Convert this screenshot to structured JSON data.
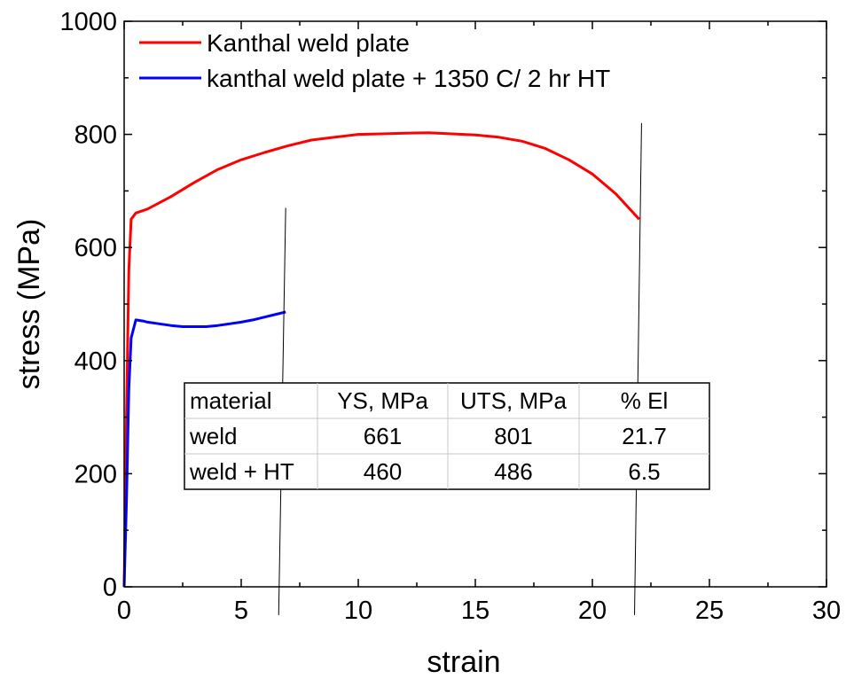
{
  "chart_data": {
    "type": "line",
    "title": "",
    "xlabel": "strain",
    "ylabel": "stress (MPa)",
    "xlim": [
      0,
      30
    ],
    "ylim": [
      0,
      1000
    ],
    "x_ticks": [
      0,
      5,
      10,
      15,
      20,
      25,
      30
    ],
    "y_ticks": [
      0,
      200,
      400,
      600,
      800,
      1000
    ],
    "x_tick_labels": [
      "0",
      "5",
      "10",
      "15",
      "20",
      "25",
      "30"
    ],
    "y_tick_labels": [
      "0",
      "200",
      "400",
      "600",
      "800",
      "1000"
    ],
    "grid": false,
    "legend_position": "top-left",
    "series": [
      {
        "name": "Kanthal weld plate",
        "color": "#ff0000",
        "x": [
          0,
          0.1,
          0.2,
          0.3,
          0.5,
          1.0,
          2.0,
          3.0,
          4.0,
          5.0,
          6.0,
          7.0,
          8.0,
          9.0,
          10.0,
          11.0,
          12.0,
          13.0,
          14.0,
          15.0,
          16.0,
          17.0,
          18.0,
          19.0,
          20.0,
          21.0,
          22.0
        ],
        "y": [
          0,
          300,
          560,
          650,
          661,
          668,
          690,
          715,
          738,
          755,
          768,
          780,
          790,
          795,
          800,
          801,
          802,
          803,
          801,
          799,
          795,
          788,
          775,
          755,
          730,
          695,
          650
        ]
      },
      {
        "name": "kanthal weld plate + 1350 C/ 2 hr HT",
        "color": "#0000ff",
        "x": [
          0,
          0.1,
          0.2,
          0.3,
          0.5,
          0.8,
          1.0,
          1.5,
          2.0,
          2.5,
          3.0,
          3.5,
          4.0,
          4.5,
          5.0,
          5.5,
          6.0,
          6.5,
          6.9
        ],
        "y": [
          0,
          150,
          350,
          440,
          472,
          470,
          468,
          465,
          462,
          460,
          460,
          460,
          462,
          465,
          468,
          472,
          477,
          482,
          486
        ]
      }
    ],
    "annotation_lines": [
      {
        "x": [
          6.6,
          6.9
        ],
        "y": [
          -50,
          670
        ]
      },
      {
        "x": [
          21.8,
          22.1
        ],
        "y": [
          -50,
          820
        ]
      }
    ]
  },
  "table": {
    "headers": [
      "material",
      "YS, MPa",
      "UTS, MPa",
      "% El"
    ],
    "rows": [
      [
        "weld",
        "661",
        "801",
        "21.7"
      ],
      [
        "weld + HT",
        "460",
        "486",
        "6.5"
      ]
    ]
  }
}
